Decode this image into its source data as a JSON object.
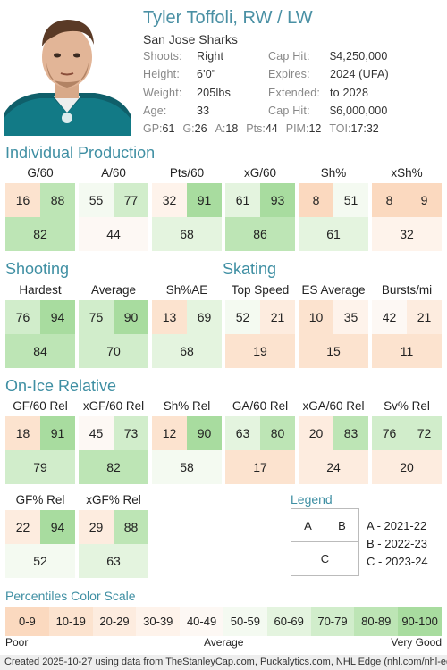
{
  "player": {
    "name": "Tyler Toffoli, RW / LW",
    "team": "San Jose Sharks"
  },
  "info_left": [
    {
      "label": "Shoots:",
      "value": "Right"
    },
    {
      "label": "Height:",
      "value": "6'0\""
    },
    {
      "label": "Weight:",
      "value": "205lbs"
    },
    {
      "label": "Age:",
      "value": "33"
    }
  ],
  "info_right": [
    {
      "label": "Cap Hit:",
      "value": "$4,250,000"
    },
    {
      "label": "Expires:",
      "value": "2024 (UFA)"
    },
    {
      "label": "Extended:",
      "value": "to 2028"
    },
    {
      "label": "Cap Hit:",
      "value": "$6,000,000"
    }
  ],
  "statline": [
    {
      "label": "GP:",
      "value": "61"
    },
    {
      "label": "G:",
      "value": "26"
    },
    {
      "label": "A:",
      "value": "18"
    },
    {
      "label": "Pts:",
      "value": "44"
    },
    {
      "label": "PIM:",
      "value": "12"
    },
    {
      "label": "TOI:",
      "value": "17:32"
    }
  ],
  "sections": {
    "individual": "Individual Production",
    "shooting": "Shooting",
    "skating": "Skating",
    "onice": "On-Ice Relative"
  },
  "metrics": [
    {
      "label": "G/60",
      "a": 16,
      "b": 88,
      "c": 82
    },
    {
      "label": "A/60",
      "a": 55,
      "b": 77,
      "c": 44
    },
    {
      "label": "Pts/60",
      "a": 32,
      "b": 91,
      "c": 68
    },
    {
      "label": "xG/60",
      "a": 61,
      "b": 93,
      "c": 86
    },
    {
      "label": "Sh%",
      "a": 8,
      "b": 51,
      "c": 61
    },
    {
      "label": "xSh%",
      "a": 8,
      "b": 9,
      "c": 32
    },
    {
      "label": "Hardest",
      "a": 76,
      "b": 94,
      "c": 84
    },
    {
      "label": "Average",
      "a": 75,
      "b": 90,
      "c": 70
    },
    {
      "label": "Sh%AE",
      "a": 13,
      "b": 69,
      "c": 68
    },
    {
      "label": "Top Speed",
      "a": 52,
      "b": 21,
      "c": 19
    },
    {
      "label": "ES Average",
      "a": 10,
      "b": 35,
      "c": 15
    },
    {
      "label": "Bursts/mi",
      "a": 42,
      "b": 21,
      "c": 11
    },
    {
      "label": "GF/60 Rel",
      "a": 18,
      "b": 91,
      "c": 79
    },
    {
      "label": "xGF/60 Rel",
      "a": 45,
      "b": 73,
      "c": 82
    },
    {
      "label": "Sh% Rel",
      "a": 12,
      "b": 90,
      "c": 58
    },
    {
      "label": "GA/60 Rel",
      "a": 63,
      "b": 80,
      "c": 17
    },
    {
      "label": "xGA/60 Rel",
      "a": 20,
      "b": 83,
      "c": 24
    },
    {
      "label": "Sv% Rel",
      "a": 76,
      "b": 72,
      "c": 20
    },
    {
      "label": "GF% Rel",
      "a": 22,
      "b": 94,
      "c": 52
    },
    {
      "label": "xGF% Rel",
      "a": 29,
      "b": 88,
      "c": 63
    }
  ],
  "legend": {
    "title": "Legend",
    "a": "A",
    "b": "B",
    "c": "C",
    "rows": [
      "A - 2021-22",
      "B - 2022-23",
      "C - 2023-24"
    ]
  },
  "scale": {
    "title": "Percentiles Color Scale",
    "bins": [
      "0-9",
      "10-19",
      "20-29",
      "30-39",
      "40-49",
      "50-59",
      "60-69",
      "70-79",
      "80-89",
      "90-100"
    ],
    "colors": [
      "#fbd9bf",
      "#fce3cf",
      "#fdecdf",
      "#fef3eb",
      "#fdf8f4",
      "#f4faf1",
      "#e4f4df",
      "#d1edcb",
      "#bde5b5",
      "#a8dc9f"
    ],
    "poor": "Poor",
    "average": "Average",
    "verygood": "Very Good"
  },
  "footer": "Created 2025-10-27 using data from TheStanleyCap.com, Puckalytics.com, NHL Edge (nhl.com/nhl-edge)."
}
